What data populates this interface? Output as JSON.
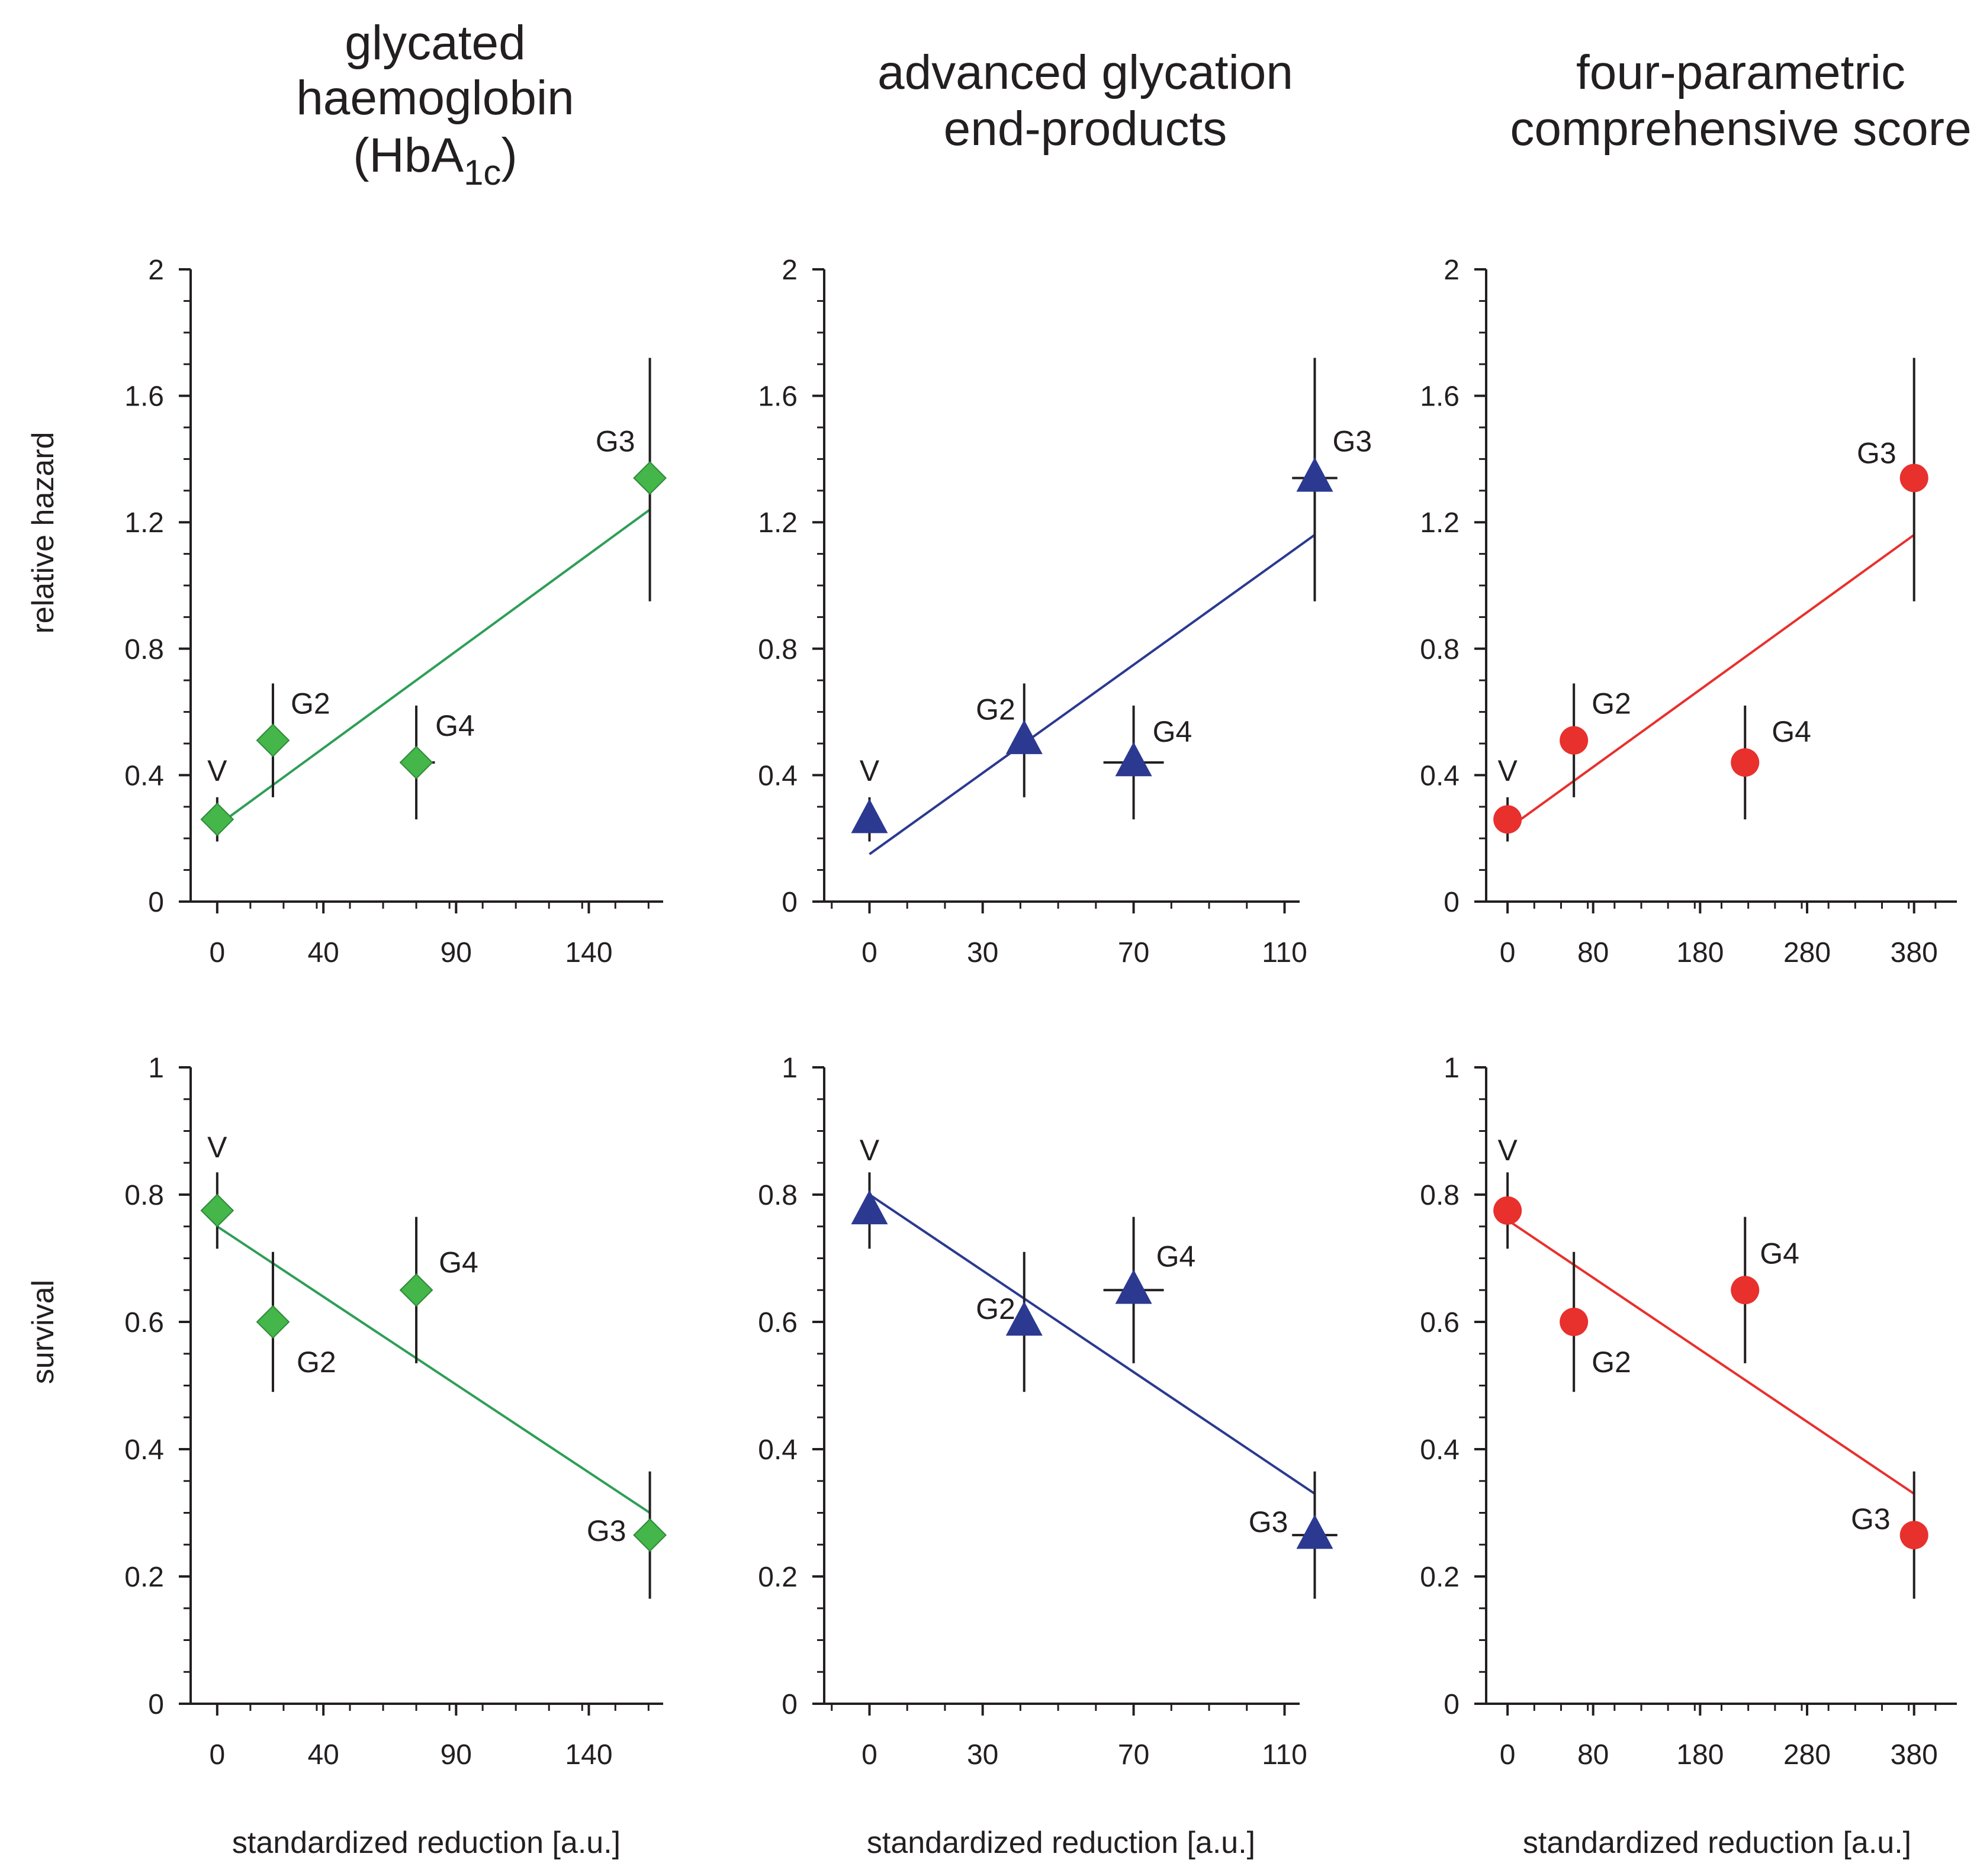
{
  "row_labels": [
    "relative hazard",
    "survival"
  ],
  "x_axis_title": "standardized reduction [a.u.]",
  "colors": {
    "axis": "#231f20",
    "hba1c": "#45b649",
    "hba1c_line": "#2e9e57",
    "age": "#2b3990",
    "score": "#e8302d"
  },
  "column_titles": [
    {
      "lines": [
        "glycated",
        "haemoglobin"
      ],
      "line3": {
        "prefix": "(HbA",
        "sub": "1c",
        "suffix": ")"
      }
    },
    {
      "lines": [
        "advanced glycation",
        "end-products"
      ]
    },
    {
      "lines": [
        "four-parametric",
        "comprehensive score"
      ]
    }
  ],
  "chart_data": [
    {
      "type": "scatter",
      "row": 0,
      "col": 0,
      "marker": "diamond",
      "color_key": "hba1c",
      "ylabel": "relative hazard",
      "xlabel": "standardized reduction [a.u.]",
      "xlim": [
        -10,
        168
      ],
      "ylim": [
        0,
        2
      ],
      "xticks": [
        0,
        40,
        90,
        140
      ],
      "yticks": [
        "0",
        "0.4",
        "0.8",
        "1.2",
        "1.6",
        "2"
      ],
      "points": [
        {
          "label": "V",
          "x": 0,
          "y": 0.26,
          "ylo": 0.19,
          "yhi": 0.33
        },
        {
          "label": "G2",
          "x": 21,
          "y": 0.51,
          "ylo": 0.33,
          "yhi": 0.69
        },
        {
          "label": "G4",
          "x": 75,
          "y": 0.44,
          "ylo": 0.26,
          "yhi": 0.62,
          "xlo": 69,
          "xhi": 82
        },
        {
          "label": "G3",
          "x": 163,
          "y": 1.34,
          "ylo": 0.95,
          "yhi": 1.72
        }
      ],
      "fit": {
        "x1": 0,
        "y1": 0.24,
        "x2": 163,
        "y2": 1.24
      }
    },
    {
      "type": "scatter",
      "row": 0,
      "col": 1,
      "marker": "triangle",
      "color_key": "age",
      "ylabel": "relative hazard",
      "xlabel": "standardized reduction [a.u.]",
      "xlim": [
        -12,
        114
      ],
      "ylim": [
        0,
        2
      ],
      "xticks": [
        0,
        30,
        70,
        110
      ],
      "yticks": [
        "0",
        "0.4",
        "0.8",
        "1.2",
        "1.6",
        "2"
      ],
      "points": [
        {
          "label": "V",
          "x": 0,
          "y": 0.26,
          "ylo": 0.19,
          "yhi": 0.33
        },
        {
          "label": "G2",
          "x": 41,
          "y": 0.51,
          "ylo": 0.33,
          "yhi": 0.69
        },
        {
          "label": "G4",
          "x": 70,
          "y": 0.44,
          "ylo": 0.26,
          "yhi": 0.62,
          "xlo": 62,
          "xhi": 78
        },
        {
          "label": "G3",
          "x": 118,
          "y": 1.34,
          "ylo": 0.95,
          "yhi": 1.72,
          "xlo": 112,
          "xhi": 124
        }
      ],
      "fit": {
        "x1": 0,
        "y1": 0.15,
        "x2": 118,
        "y2": 1.16
      }
    },
    {
      "type": "scatter",
      "row": 0,
      "col": 2,
      "marker": "circle",
      "color_key": "score",
      "ylabel": "relative hazard",
      "xlabel": "standardized reduction [a.u.]",
      "xlim": [
        -20,
        420
      ],
      "ylim": [
        0,
        2
      ],
      "xticks": [
        0,
        80,
        180,
        280,
        380
      ],
      "yticks": [
        "0",
        "0.4",
        "0.8",
        "1.2",
        "1.6",
        "2"
      ],
      "points": [
        {
          "label": "V",
          "x": 0,
          "y": 0.26,
          "ylo": 0.19,
          "yhi": 0.33
        },
        {
          "label": "G2",
          "x": 62,
          "y": 0.51,
          "ylo": 0.33,
          "yhi": 0.69
        },
        {
          "label": "G4",
          "x": 222,
          "y": 0.44,
          "ylo": 0.26,
          "yhi": 0.62,
          "xlo": 210,
          "xhi": 234
        },
        {
          "label": "G3",
          "x": 380,
          "y": 1.34,
          "ylo": 0.95,
          "yhi": 1.72
        }
      ],
      "fit": {
        "x1": 0,
        "y1": 0.23,
        "x2": 380,
        "y2": 1.16
      }
    },
    {
      "type": "scatter",
      "row": 1,
      "col": 0,
      "marker": "diamond",
      "color_key": "hba1c",
      "ylabel": "survival",
      "xlabel": "standardized reduction [a.u.]",
      "xlim": [
        -10,
        168
      ],
      "ylim": [
        0,
        1
      ],
      "xticks": [
        0,
        40,
        90,
        140
      ],
      "yticks": [
        "0",
        "0.2",
        "0.4",
        "0.6",
        "0.8",
        "1"
      ],
      "points": [
        {
          "label": "V",
          "x": 0,
          "y": 0.775,
          "ylo": 0.715,
          "yhi": 0.835
        },
        {
          "label": "G2",
          "x": 21,
          "y": 0.6,
          "ylo": 0.49,
          "yhi": 0.71
        },
        {
          "label": "G4",
          "x": 75,
          "y": 0.65,
          "ylo": 0.535,
          "yhi": 0.765
        },
        {
          "label": "G3",
          "x": 163,
          "y": 0.265,
          "ylo": 0.165,
          "yhi": 0.365
        }
      ],
      "fit": {
        "x1": 0,
        "y1": 0.75,
        "x2": 163,
        "y2": 0.3
      }
    },
    {
      "type": "scatter",
      "row": 1,
      "col": 1,
      "marker": "triangle",
      "color_key": "age",
      "ylabel": "survival",
      "xlabel": "standardized reduction [a.u.]",
      "xlim": [
        -12,
        114
      ],
      "ylim": [
        0,
        1
      ],
      "xticks": [
        0,
        30,
        70,
        110
      ],
      "yticks": [
        "0",
        "0.2",
        "0.4",
        "0.6",
        "0.8",
        "1"
      ],
      "points": [
        {
          "label": "V",
          "x": 0,
          "y": 0.775,
          "ylo": 0.715,
          "yhi": 0.835
        },
        {
          "label": "G2",
          "x": 41,
          "y": 0.6,
          "ylo": 0.49,
          "yhi": 0.71
        },
        {
          "label": "G4",
          "x": 70,
          "y": 0.65,
          "ylo": 0.535,
          "yhi": 0.765,
          "xlo": 62,
          "xhi": 78
        },
        {
          "label": "G3",
          "x": 118,
          "y": 0.265,
          "ylo": 0.165,
          "yhi": 0.365,
          "xlo": 112,
          "xhi": 124
        }
      ],
      "fit": {
        "x1": 0,
        "y1": 0.8,
        "x2": 118,
        "y2": 0.33
      }
    },
    {
      "type": "scatter",
      "row": 1,
      "col": 2,
      "marker": "circle",
      "color_key": "score",
      "ylabel": "survival",
      "xlabel": "standardized reduction [a.u.]",
      "xlim": [
        -20,
        420
      ],
      "ylim": [
        0,
        1
      ],
      "xticks": [
        0,
        80,
        180,
        280,
        380
      ],
      "yticks": [
        "0",
        "0.2",
        "0.4",
        "0.6",
        "0.8",
        "1"
      ],
      "points": [
        {
          "label": "V",
          "x": 0,
          "y": 0.775,
          "ylo": 0.715,
          "yhi": 0.835
        },
        {
          "label": "G2",
          "x": 62,
          "y": 0.6,
          "ylo": 0.49,
          "yhi": 0.71
        },
        {
          "label": "G4",
          "x": 222,
          "y": 0.65,
          "ylo": 0.535,
          "yhi": 0.765,
          "xlo": 210,
          "xhi": 234
        },
        {
          "label": "G3",
          "x": 380,
          "y": 0.265,
          "ylo": 0.165,
          "yhi": 0.365
        }
      ],
      "fit": {
        "x1": 0,
        "y1": 0.76,
        "x2": 380,
        "y2": 0.33
      }
    }
  ]
}
